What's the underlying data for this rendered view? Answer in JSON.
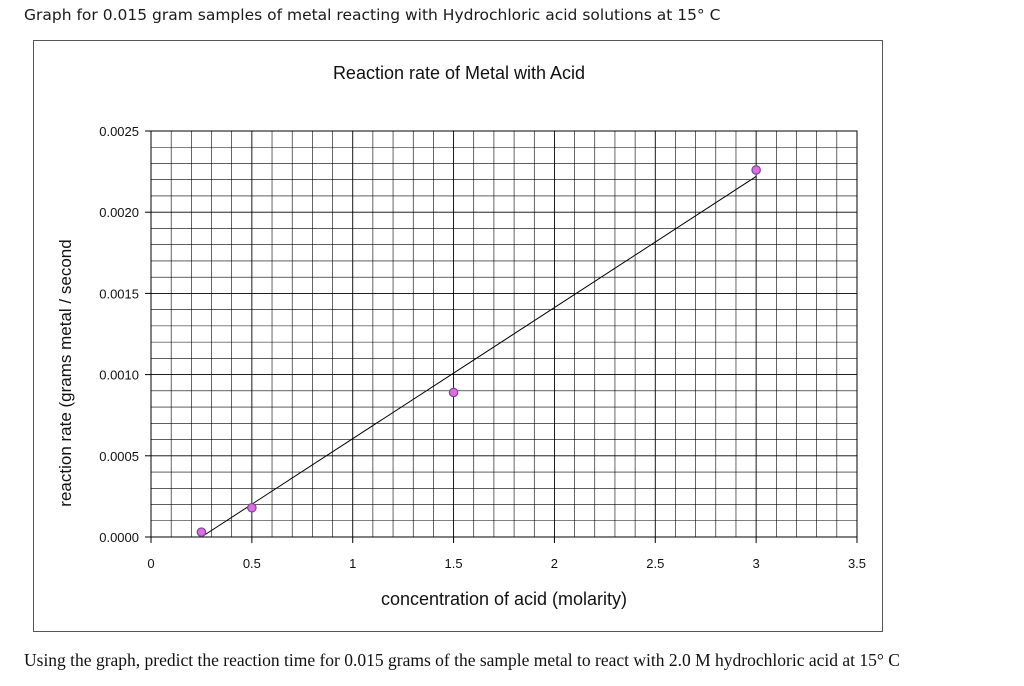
{
  "page": {
    "heading": "Graph for 0.015 gram samples of metal reacting with Hydrochloric acid solutions at 15° C",
    "question": "Using the graph, predict the reaction time for 0.015 grams of the sample metal to react with 2.0 M hydrochloric acid at 15° C"
  },
  "chart_data": {
    "type": "scatter",
    "title": "Reaction rate of Metal with Acid",
    "xlabel": "concentration of acid (molarity)",
    "ylabel": "reaction rate (grams metal / second",
    "xlim": [
      0,
      3.5
    ],
    "ylim": [
      0,
      0.0025
    ],
    "x_ticks": [
      "0",
      "0.5",
      "1",
      "1.5",
      "2",
      "2.5",
      "3",
      "3.5"
    ],
    "y_ticks": [
      "0.0000",
      "0.0005",
      "0.0010",
      "0.0015",
      "0.0020",
      "0.0025"
    ],
    "grid": true,
    "legend": "none",
    "points": [
      {
        "x": 0.25,
        "y": 3e-05
      },
      {
        "x": 0.5,
        "y": 0.00018
      },
      {
        "x": 1.5,
        "y": 0.00089
      },
      {
        "x": 3.0,
        "y": 0.00226
      }
    ],
    "trendline": {
      "type": "linear",
      "x": [
        0.25,
        3.0
      ],
      "y": [
        0.0,
        0.00222
      ]
    },
    "colors": {
      "marker_fill": "#e36be0",
      "marker_stroke": "#6a4a9a",
      "grid": "#000000",
      "line": "#000000"
    }
  }
}
